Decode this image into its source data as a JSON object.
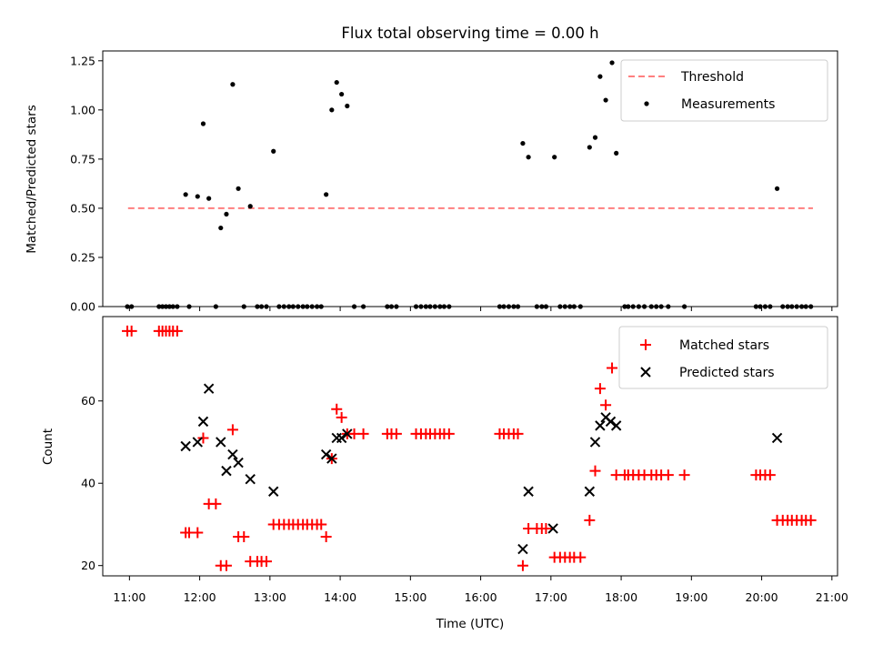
{
  "chart_data": [
    {
      "type": "scatter",
      "title": "Flux total observing time = 0.00 h",
      "xlabel": "",
      "ylabel": "Matched/Predicted stars",
      "xlim": [
        10.62,
        21.08
      ],
      "ylim": [
        0,
        1.3
      ],
      "yticks": [
        0,
        0.25,
        0.5,
        0.75,
        1.0,
        1.25
      ],
      "ytick_labels": [
        "0.00",
        "0.25",
        "0.50",
        "0.75",
        "1.00",
        "1.25"
      ],
      "xticks": [
        11,
        12,
        13,
        14,
        15,
        16,
        17,
        18,
        19,
        20,
        21
      ],
      "grid": false,
      "legend": "top-right",
      "threshold": {
        "name": "Threshold",
        "value": 0.5,
        "x_range": [
          10.98,
          20.73
        ],
        "color": "#ff7f7f"
      },
      "series": [
        {
          "name": "Measurements",
          "color": "#000000",
          "x": [
            10.97,
            11.03,
            11.42,
            11.47,
            11.52,
            11.57,
            11.62,
            11.68,
            11.8,
            11.85,
            11.97,
            12.05,
            12.13,
            12.23,
            12.3,
            12.38,
            12.47,
            12.55,
            12.63,
            12.72,
            12.82,
            12.88,
            12.95,
            13.05,
            13.13,
            13.2,
            13.27,
            13.33,
            13.4,
            13.47,
            13.53,
            13.6,
            13.67,
            13.73,
            13.8,
            13.88,
            13.95,
            14.02,
            14.1,
            14.2,
            14.33,
            14.67,
            14.73,
            14.8,
            15.08,
            15.15,
            15.22,
            15.28,
            15.35,
            15.42,
            15.48,
            15.55,
            16.27,
            16.33,
            16.4,
            16.47,
            16.53,
            16.6,
            16.68,
            16.8,
            16.87,
            16.93,
            17.05,
            17.13,
            17.2,
            17.27,
            17.33,
            17.42,
            17.55,
            17.63,
            17.7,
            17.78,
            17.87,
            17.93,
            18.05,
            18.1,
            18.17,
            18.25,
            18.33,
            18.43,
            18.5,
            18.57,
            18.67,
            18.9,
            19.92,
            19.98,
            20.05,
            20.12,
            20.22,
            20.3,
            20.37,
            20.43,
            20.5,
            20.57,
            20.63,
            20.7
          ],
          "y": [
            0,
            0,
            0,
            0,
            0,
            0,
            0,
            0,
            0.57,
            0,
            0.56,
            0.93,
            0.55,
            0,
            0.4,
            0.47,
            1.13,
            0.6,
            0,
            0.51,
            0,
            0,
            0,
            0.79,
            0,
            0,
            0,
            0,
            0,
            0,
            0,
            0,
            0,
            0,
            0.57,
            1.0,
            1.14,
            1.08,
            1.02,
            0,
            0,
            0,
            0,
            0,
            0,
            0,
            0,
            0,
            0,
            0,
            0,
            0,
            0,
            0,
            0,
            0,
            0,
            0.83,
            0.76,
            0,
            0,
            0,
            0.76,
            0,
            0,
            0,
            0,
            0,
            0.81,
            0.86,
            1.17,
            1.05,
            1.24,
            0.78,
            0,
            0,
            0,
            0,
            0,
            0,
            0,
            0,
            0,
            0,
            0,
            0,
            0,
            0,
            0.6,
            0,
            0,
            0,
            0,
            0,
            0,
            0
          ]
        }
      ]
    },
    {
      "type": "scatter",
      "title": "",
      "xlabel": "Time (UTC)",
      "ylabel": "Count",
      "xlim": [
        10.62,
        21.08
      ],
      "ylim": [
        17.5,
        80.5
      ],
      "yticks": [
        20,
        40,
        60
      ],
      "xticks": [
        11,
        12,
        13,
        14,
        15,
        16,
        17,
        18,
        19,
        20,
        21
      ],
      "xtick_labels": [
        "11:00",
        "12:00",
        "13:00",
        "14:00",
        "15:00",
        "16:00",
        "17:00",
        "18:00",
        "19:00",
        "20:00",
        "21:00"
      ],
      "grid": false,
      "legend": "top-right",
      "series": [
        {
          "name": "Matched stars",
          "marker": "plus",
          "color": "#ff0000",
          "x": [
            10.97,
            11.03,
            11.42,
            11.47,
            11.52,
            11.57,
            11.62,
            11.68,
            11.8,
            11.85,
            11.97,
            12.05,
            12.13,
            12.23,
            12.3,
            12.38,
            12.47,
            12.55,
            12.63,
            12.72,
            12.82,
            12.88,
            12.95,
            13.05,
            13.13,
            13.2,
            13.27,
            13.33,
            13.4,
            13.47,
            13.53,
            13.6,
            13.67,
            13.73,
            13.8,
            13.88,
            13.95,
            14.02,
            14.1,
            14.2,
            14.33,
            14.67,
            14.73,
            14.8,
            15.08,
            15.15,
            15.22,
            15.28,
            15.35,
            15.42,
            15.48,
            15.55,
            16.27,
            16.33,
            16.4,
            16.47,
            16.53,
            16.6,
            16.68,
            16.8,
            16.87,
            16.93,
            17.05,
            17.13,
            17.2,
            17.27,
            17.33,
            17.42,
            17.55,
            17.63,
            17.7,
            17.78,
            17.87,
            17.93,
            18.05,
            18.1,
            18.17,
            18.25,
            18.33,
            18.43,
            18.5,
            18.57,
            18.67,
            18.9,
            19.92,
            19.98,
            20.05,
            20.12,
            20.22,
            20.3,
            20.37,
            20.43,
            20.5,
            20.57,
            20.63,
            20.7
          ],
          "y": [
            77,
            77,
            77,
            77,
            77,
            77,
            77,
            77,
            28,
            28,
            28,
            51,
            35,
            35,
            20,
            20,
            53,
            27,
            27,
            21,
            21,
            21,
            21,
            30,
            30,
            30,
            30,
            30,
            30,
            30,
            30,
            30,
            30,
            30,
            27,
            46,
            58,
            56,
            52,
            52,
            52,
            52,
            52,
            52,
            52,
            52,
            52,
            52,
            52,
            52,
            52,
            52,
            52,
            52,
            52,
            52,
            52,
            20,
            29,
            29,
            29,
            29,
            22,
            22,
            22,
            22,
            22,
            22,
            31,
            43,
            63,
            59,
            68,
            42,
            42,
            42,
            42,
            42,
            42,
            42,
            42,
            42,
            42,
            42,
            42,
            42,
            42,
            42,
            31,
            31,
            31,
            31,
            31,
            31,
            31,
            31
          ]
        },
        {
          "name": "Predicted stars",
          "marker": "x",
          "color": "#000000",
          "x": [
            11.8,
            11.97,
            12.05,
            12.13,
            12.3,
            12.38,
            12.47,
            12.55,
            12.72,
            13.05,
            13.8,
            13.88,
            13.95,
            14.02,
            14.1,
            16.6,
            16.68,
            17.03,
            17.55,
            17.63,
            17.7,
            17.78,
            17.85,
            17.93,
            20.22
          ],
          "y": [
            49,
            50,
            55,
            63,
            50,
            43,
            47,
            45,
            41,
            38,
            47,
            46,
            51,
            51,
            52,
            24,
            38,
            29,
            38,
            50,
            54,
            56,
            55,
            54,
            51
          ]
        }
      ]
    }
  ]
}
